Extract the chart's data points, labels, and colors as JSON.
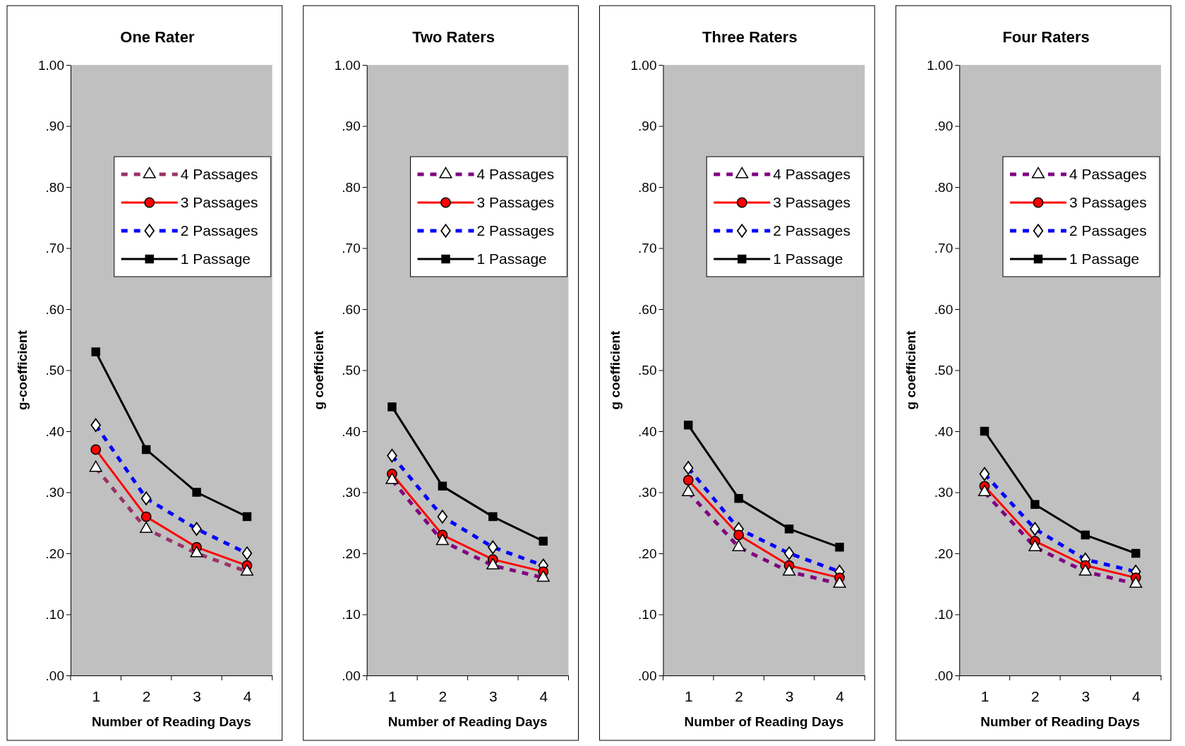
{
  "chart_data": [
    {
      "type": "line",
      "title": "One Rater",
      "xlabel": "Number of Reading Days",
      "ylabel": "g-coefficient",
      "categories": [
        "1",
        "2",
        "3",
        "4"
      ],
      "ylim": [
        0,
        1
      ],
      "yticks": [
        {
          "value": 0,
          "label": ".00"
        },
        {
          "value": 0.1,
          "label": ".10"
        },
        {
          "value": 0.2,
          "label": ".20"
        },
        {
          "value": 0.3,
          "label": ".30"
        },
        {
          "value": 0.4,
          "label": ".40"
        },
        {
          "value": 0.5,
          "label": ".50"
        },
        {
          "value": 0.6,
          "label": ".60"
        },
        {
          "value": 0.7,
          "label": ".70"
        },
        {
          "value": 0.8,
          "label": ".80"
        },
        {
          "value": 0.9,
          "label": ".90"
        },
        {
          "value": 1,
          "label": "1.00"
        }
      ],
      "grid": false,
      "legend": "top right",
      "series": [
        {
          "name": "4 Passages",
          "color": "#993366",
          "marker": "triangle",
          "line_style": "dashed",
          "values": [
            0.34,
            0.24,
            0.2,
            0.17
          ]
        },
        {
          "name": "3 Passages",
          "color": "#ff0000",
          "marker": "circle",
          "line_style": "solid",
          "values": [
            0.37,
            0.26,
            0.21,
            0.18
          ]
        },
        {
          "name": "2 Passages",
          "color": "#0000ff",
          "marker": "diamond",
          "line_style": "dashed",
          "values": [
            0.41,
            0.29,
            0.24,
            0.2
          ]
        },
        {
          "name": "1 Passage",
          "color": "#000000",
          "marker": "square",
          "line_style": "solid",
          "values": [
            0.53,
            0.37,
            0.3,
            0.26
          ]
        }
      ]
    },
    {
      "type": "line",
      "title": "Two Raters",
      "xlabel": "Number of Reading Days",
      "ylabel": "g coefficient",
      "categories": [
        "1",
        "2",
        "3",
        "4"
      ],
      "ylim": [
        0,
        1
      ],
      "yticks": [
        {
          "value": 0,
          "label": ".00"
        },
        {
          "value": 0.1,
          "label": ".10"
        },
        {
          "value": 0.2,
          "label": ".20"
        },
        {
          "value": 0.3,
          "label": ".30"
        },
        {
          "value": 0.4,
          "label": ".40"
        },
        {
          "value": 0.5,
          "label": ".50"
        },
        {
          "value": 0.6,
          "label": ".60"
        },
        {
          "value": 0.7,
          "label": ".70"
        },
        {
          "value": 0.8,
          "label": ".80"
        },
        {
          "value": 0.9,
          "label": ".90"
        },
        {
          "value": 1,
          "label": "1.00"
        }
      ],
      "grid": false,
      "legend": "top right",
      "series": [
        {
          "name": "4 Passages",
          "color": "#800080",
          "marker": "triangle",
          "line_style": "dashed",
          "values": [
            0.32,
            0.22,
            0.18,
            0.16
          ]
        },
        {
          "name": "3 Passages",
          "color": "#ff0000",
          "marker": "circle",
          "line_style": "solid",
          "values": [
            0.33,
            0.23,
            0.19,
            0.17
          ]
        },
        {
          "name": "2 Passages",
          "color": "#0000ff",
          "marker": "diamond",
          "line_style": "dashed",
          "values": [
            0.36,
            0.26,
            0.21,
            0.18
          ]
        },
        {
          "name": "1 Passage",
          "color": "#000000",
          "marker": "square",
          "line_style": "solid",
          "values": [
            0.44,
            0.31,
            0.26,
            0.22
          ]
        }
      ]
    },
    {
      "type": "line",
      "title": "Three Raters",
      "xlabel": "Number of Reading Days",
      "ylabel": "g coefficient",
      "categories": [
        "1",
        "2",
        "3",
        "4"
      ],
      "ylim": [
        0,
        1
      ],
      "yticks": [
        {
          "value": 0,
          "label": ".00"
        },
        {
          "value": 0.1,
          "label": ".10"
        },
        {
          "value": 0.2,
          "label": ".20"
        },
        {
          "value": 0.3,
          "label": ".30"
        },
        {
          "value": 0.4,
          "label": ".40"
        },
        {
          "value": 0.5,
          "label": ".50"
        },
        {
          "value": 0.6,
          "label": ".60"
        },
        {
          "value": 0.7,
          "label": ".70"
        },
        {
          "value": 0.8,
          "label": ".80"
        },
        {
          "value": 0.9,
          "label": ".90"
        },
        {
          "value": 1,
          "label": "1.00"
        }
      ],
      "grid": false,
      "legend": "top right",
      "series": [
        {
          "name": "4 Passages",
          "color": "#800080",
          "marker": "triangle",
          "line_style": "dashed",
          "values": [
            0.3,
            0.21,
            0.17,
            0.15
          ]
        },
        {
          "name": "3 Passages",
          "color": "#ff0000",
          "marker": "circle",
          "line_style": "solid",
          "values": [
            0.32,
            0.23,
            0.18,
            0.16
          ]
        },
        {
          "name": "2 Passages",
          "color": "#0000ff",
          "marker": "diamond",
          "line_style": "dashed",
          "values": [
            0.34,
            0.24,
            0.2,
            0.17
          ]
        },
        {
          "name": "1 Passage",
          "color": "#000000",
          "marker": "square",
          "line_style": "solid",
          "values": [
            0.41,
            0.29,
            0.24,
            0.21
          ]
        }
      ]
    },
    {
      "type": "line",
      "title": "Four Raters",
      "xlabel": "Number of Reading Days",
      "ylabel": "g coefficient",
      "categories": [
        "1",
        "2",
        "3",
        "4"
      ],
      "ylim": [
        0,
        1
      ],
      "yticks": [
        {
          "value": 0,
          "label": ".00"
        },
        {
          "value": 0.1,
          "label": ".10"
        },
        {
          "value": 0.2,
          "label": ".20"
        },
        {
          "value": 0.3,
          "label": ".30"
        },
        {
          "value": 0.4,
          "label": ".40"
        },
        {
          "value": 0.5,
          "label": ".50"
        },
        {
          "value": 0.6,
          "label": ".60"
        },
        {
          "value": 0.7,
          "label": ".70"
        },
        {
          "value": 0.8,
          "label": ".80"
        },
        {
          "value": 0.9,
          "label": ".90"
        },
        {
          "value": 1,
          "label": "1.00"
        }
      ],
      "grid": false,
      "legend": "top right",
      "series": [
        {
          "name": "4 Passages",
          "color": "#800080",
          "marker": "triangle",
          "line_style": "dashed",
          "values": [
            0.3,
            0.21,
            0.17,
            0.15
          ]
        },
        {
          "name": "3 Passages",
          "color": "#ff0000",
          "marker": "circle",
          "line_style": "solid",
          "values": [
            0.31,
            0.22,
            0.18,
            0.16
          ]
        },
        {
          "name": "2 Passages",
          "color": "#0000ff",
          "marker": "diamond",
          "line_style": "dashed",
          "values": [
            0.33,
            0.24,
            0.19,
            0.17
          ]
        },
        {
          "name": "1 Passage",
          "color": "#000000",
          "marker": "square",
          "line_style": "solid",
          "values": [
            0.4,
            0.28,
            0.23,
            0.2
          ]
        }
      ]
    }
  ]
}
